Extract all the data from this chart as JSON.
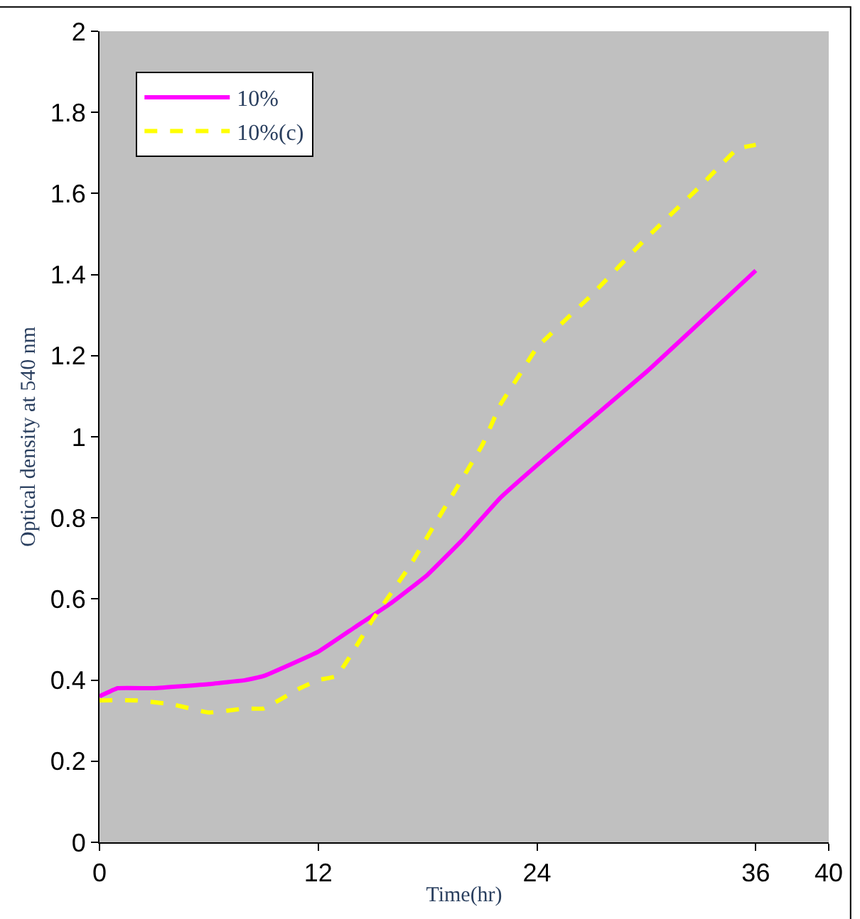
{
  "chart_data": {
    "type": "line",
    "xlabel": "Time(hr)",
    "ylabel": "Optical density at 540 nm",
    "xlim": [
      0,
      40
    ],
    "xticks": [
      0,
      12,
      24,
      36,
      40
    ],
    "ylim": [
      0,
      2
    ],
    "yticks": [
      0,
      0.2,
      0.4,
      0.6,
      0.8,
      1,
      1.2,
      1.4,
      1.6,
      1.8,
      2
    ],
    "grid": false,
    "legend": "top left",
    "marker": "none",
    "series": [
      {
        "name": "10%",
        "color": "#ff00ff",
        "line_style": "solid",
        "x": [
          0,
          1,
          3,
          6,
          8,
          9,
          12,
          14,
          16,
          18,
          20,
          22,
          24,
          30,
          36
        ],
        "values": [
          0.36,
          0.38,
          0.38,
          0.39,
          0.4,
          0.41,
          0.47,
          0.53,
          0.59,
          0.66,
          0.75,
          0.85,
          0.93,
          1.16,
          1.41
        ]
      },
      {
        "name": "10%(c)",
        "color": "#ffff00",
        "line_style": "dashed",
        "x": [
          0,
          2,
          4,
          6,
          8,
          9,
          11,
          12,
          13,
          15,
          17,
          19,
          21,
          22,
          23,
          24,
          27,
          30,
          33,
          35,
          36
        ],
        "values": [
          0.35,
          0.35,
          0.34,
          0.32,
          0.33,
          0.33,
          0.38,
          0.4,
          0.41,
          0.55,
          0.68,
          0.83,
          0.98,
          1.08,
          1.15,
          1.22,
          1.35,
          1.49,
          1.62,
          1.71,
          1.72
        ]
      }
    ]
  }
}
